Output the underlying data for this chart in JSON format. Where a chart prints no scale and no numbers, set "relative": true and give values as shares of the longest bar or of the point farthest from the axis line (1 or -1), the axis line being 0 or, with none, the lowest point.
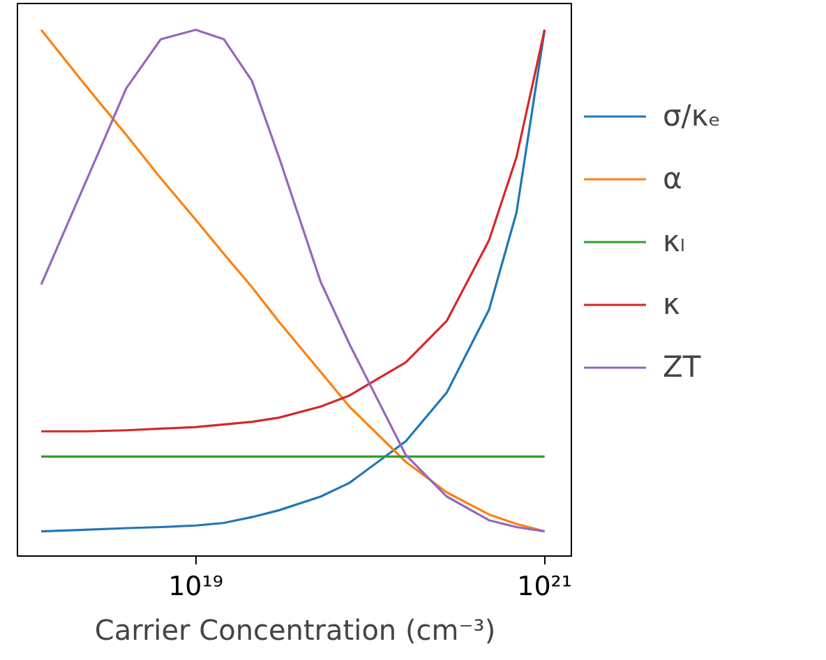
{
  "chart_data": {
    "type": "line",
    "relative": true,
    "log": "x",
    "tick_labels": "x",
    "grid": false,
    "legend": "right",
    "xlabel": "Carrier Concentration (cm⁻³)",
    "xlim": [
      9.5e+17,
      1.45e+21
    ],
    "xticks": [
      {
        "value": 1e+19,
        "label": "10¹⁹"
      },
      {
        "value": 1e+21,
        "label": "10²¹"
      }
    ],
    "x": [
      1.3e+18,
      2.3e+18,
      4e+18,
      6.3e+18,
      1e+19,
      1.45e+19,
      2.1e+19,
      3e+19,
      5.2e+19,
      7.6e+19,
      1.6e+20,
      2.75e+20,
      4.8e+20,
      6.9e+20,
      1e+21
    ],
    "series": [
      {
        "name": "σ/κₑ",
        "color": "#1f77b4",
        "values": [
          0.047,
          0.05,
          0.053,
          0.055,
          0.058,
          0.063,
          0.074,
          0.087,
          0.113,
          0.139,
          0.218,
          0.311,
          0.468,
          0.653,
          1.0
        ]
      },
      {
        "name": "α",
        "color": "#ff7f0e",
        "values": [
          1.0,
          0.897,
          0.8,
          0.718,
          0.639,
          0.574,
          0.511,
          0.445,
          0.35,
          0.284,
          0.179,
          0.121,
          0.079,
          0.061,
          0.047
        ]
      },
      {
        "name": "κₗ",
        "color": "#2ca02c",
        "values": [
          0.189,
          0.189,
          0.189,
          0.189,
          0.189,
          0.189,
          0.189,
          0.189,
          0.189,
          0.189,
          0.189,
          0.189,
          0.189,
          0.189,
          0.189
        ]
      },
      {
        "name": "κ",
        "color": "#d62728",
        "values": [
          0.237,
          0.237,
          0.239,
          0.242,
          0.245,
          0.25,
          0.255,
          0.263,
          0.284,
          0.305,
          0.368,
          0.447,
          0.6,
          0.758,
          1.0
        ]
      },
      {
        "name": "ZT",
        "color": "#9467bd",
        "values": [
          0.516,
          0.705,
          0.889,
          0.982,
          1.0,
          0.982,
          0.903,
          0.758,
          0.521,
          0.403,
          0.192,
          0.113,
          0.068,
          0.055,
          0.047
        ]
      }
    ]
  }
}
